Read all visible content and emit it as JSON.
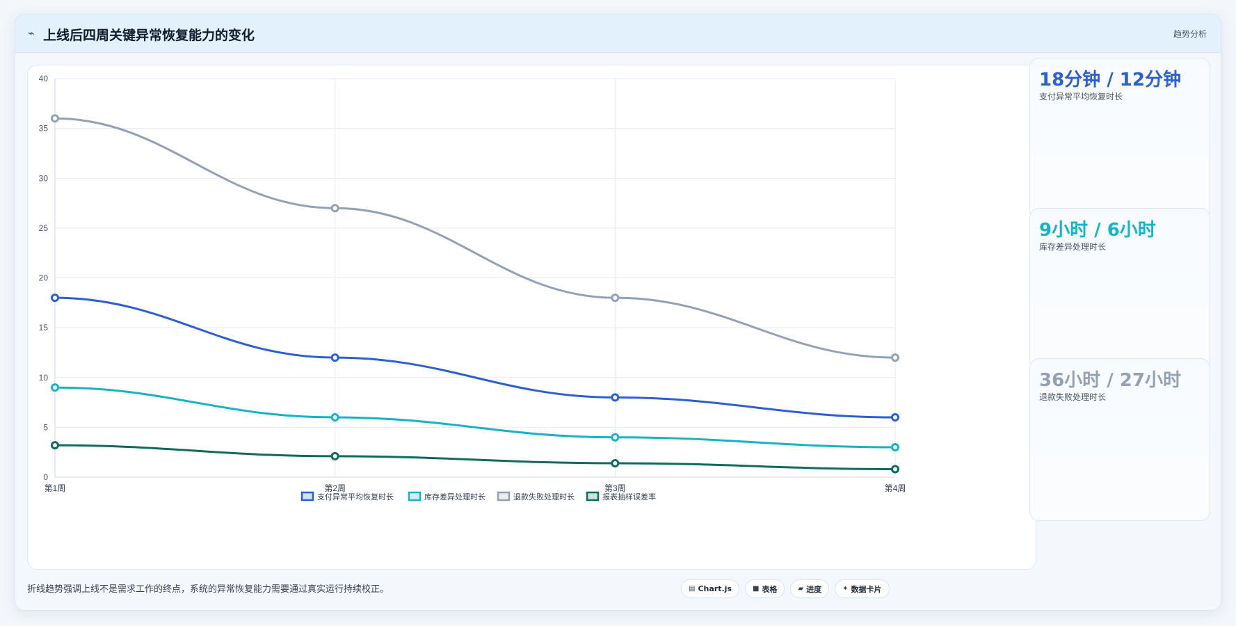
{
  "header": {
    "icon": "sparkline-icon",
    "title": "上线后四周关键异常恢复能力的变化",
    "tag": "趋势分析"
  },
  "kpis": [
    {
      "value": "18分钟 / 12分钟",
      "label": "支付异常平均恢复时长",
      "color": "#2c5fd4"
    },
    {
      "value": "9小时 / 6小时",
      "label": "库存差异处理时长",
      "color": "#16b3c8"
    },
    {
      "value": "36小时 / 27小时",
      "label": "退款失败处理时长",
      "color": "#94a0b4"
    }
  ],
  "footer": {
    "note": "折线趋势强调上线不是需求工作的终点，系统的异常恢复能力需要通过真实运行持续校正。",
    "chips": [
      {
        "icon": "chart-icon",
        "label": "Chart.js"
      },
      {
        "icon": "table-icon",
        "label": "表格"
      },
      {
        "icon": "progress-icon",
        "label": "进度"
      },
      {
        "icon": "card-icon",
        "label": "数据卡片"
      }
    ]
  },
  "chart_data": {
    "type": "line",
    "title": "",
    "xlabel": "",
    "ylabel": "",
    "categories": [
      "第1周",
      "第2周",
      "第3周",
      "第4周"
    ],
    "ylim": [
      0,
      40
    ],
    "yticks": [
      0,
      5,
      10,
      15,
      20,
      25,
      30,
      35,
      40
    ],
    "grid": true,
    "legend_position": "bottom",
    "series": [
      {
        "name": "支付异常平均恢复时长",
        "values": [
          18,
          12,
          8,
          6
        ],
        "color": "#2c5fd4"
      },
      {
        "name": "库存差异处理时长",
        "values": [
          9,
          6,
          4,
          3
        ],
        "color": "#16b3c8"
      },
      {
        "name": "退款失败处理时长",
        "values": [
          36,
          27,
          18,
          12
        ],
        "color": "#94a0b4"
      },
      {
        "name": "报表抽样误差率",
        "values": [
          3.2,
          2.1,
          1.4,
          0.8
        ],
        "color": "#0f6b5c"
      }
    ]
  }
}
